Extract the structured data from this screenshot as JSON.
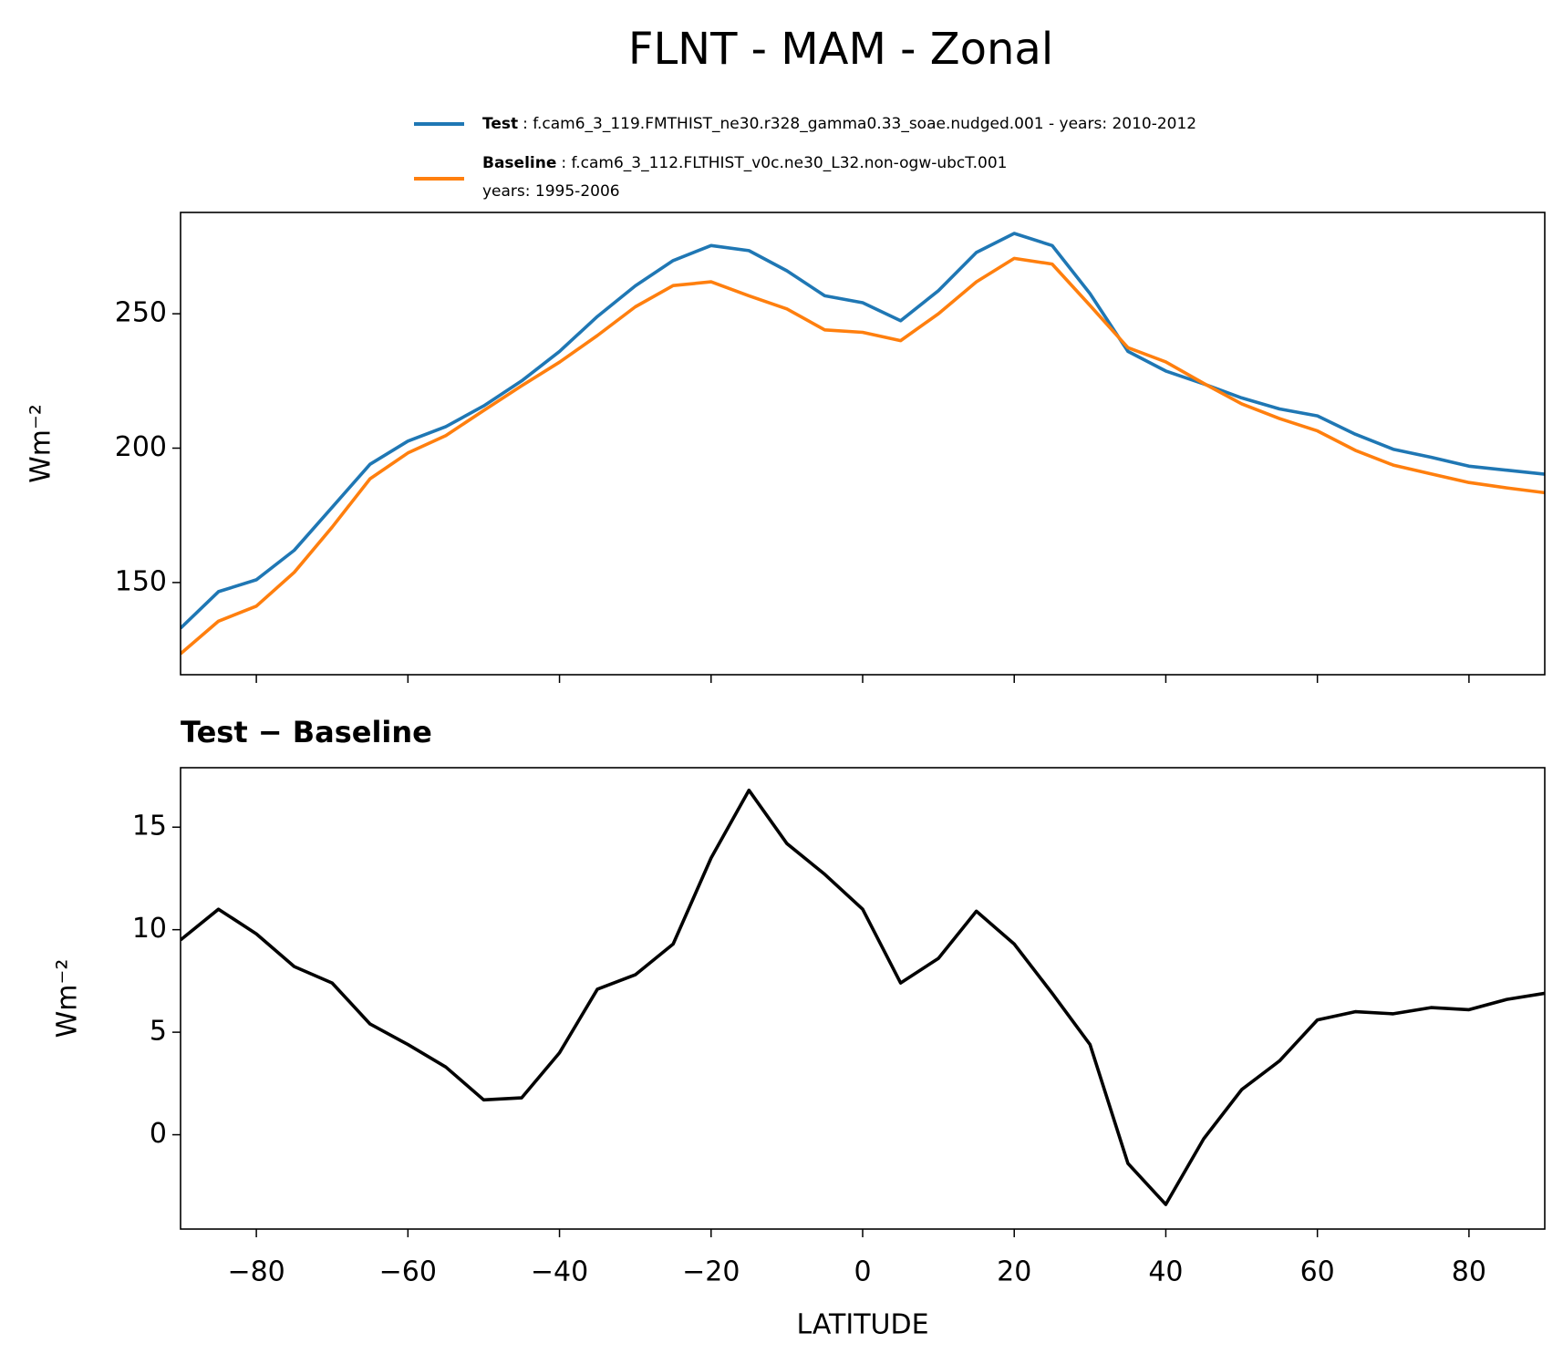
{
  "chart_data": [
    {
      "type": "line",
      "title": "FLNT - MAM - Zonal",
      "ylabel": "Wm⁻²",
      "x": [
        -90,
        -85,
        -80,
        -75,
        -70,
        -65,
        -60,
        -55,
        -50,
        -45,
        -40,
        -35,
        -30,
        -25,
        -20,
        -15,
        -10,
        -5,
        0,
        5,
        10,
        15,
        20,
        25,
        30,
        35,
        40,
        45,
        50,
        55,
        60,
        65,
        70,
        75,
        80,
        85,
        90
      ],
      "series": [
        {
          "name": "Test",
          "description": [
            ": f.cam6_3_119.FMTHIST_ne30.r328_gamma0.33_soae.nudged.001 - years: 2010-2012"
          ],
          "color": "#1f77b4",
          "values": [
            133,
            146.6,
            151,
            162,
            178,
            194,
            202.6,
            208,
            215.7,
            225,
            236,
            249,
            260.4,
            269.8,
            275.4,
            273.5,
            266,
            256.7,
            254.1,
            247.4,
            258.6,
            272.8,
            279.9,
            275.4,
            257.5,
            236,
            228.7,
            223.9,
            218.7,
            214.6,
            212,
            205.2,
            199.6,
            196.6,
            193.3,
            191.8,
            190.3
          ]
        },
        {
          "name": "Baseline",
          "description": [
            ": f.cam6_3_112.FLTHIST_v0c.ne30_L32.non-ogw-ubcT.001",
            "years: 1995-2006"
          ],
          "color": "#ff7f0e",
          "values": [
            123.5,
            135.6,
            141.2,
            153.8,
            170.6,
            188.6,
            198.2,
            204.7,
            214,
            223.2,
            232,
            241.9,
            252.6,
            260.5,
            261.9,
            256.7,
            251.8,
            244,
            243.1,
            240,
            250,
            261.9,
            270.6,
            268.5,
            253.1,
            237.4,
            232.1,
            224.1,
            216.5,
            211,
            206.4,
            199.2,
            193.7,
            190.4,
            187.2,
            185.2,
            183.4
          ]
        }
      ],
      "xlim": [
        -90,
        90
      ],
      "xticks": [
        -80,
        -60,
        -40,
        -20,
        0,
        20,
        40,
        60,
        80
      ],
      "ylim": [
        115.7,
        287.7
      ],
      "yticks": [
        150,
        200,
        250
      ]
    },
    {
      "type": "line",
      "title": "Test − Baseline",
      "ylabel": "Wm⁻²",
      "xlabel": "LATITUDE",
      "x": [
        -90,
        -85,
        -80,
        -75,
        -70,
        -65,
        -60,
        -55,
        -50,
        -45,
        -40,
        -35,
        -30,
        -25,
        -20,
        -15,
        -10,
        -5,
        0,
        5,
        10,
        15,
        20,
        25,
        30,
        35,
        40,
        45,
        50,
        55,
        60,
        65,
        70,
        75,
        80,
        85,
        90
      ],
      "series": [
        {
          "color": "#000000",
          "values": [
            9.5,
            11.0,
            9.8,
            8.2,
            7.4,
            5.4,
            4.4,
            3.3,
            1.7,
            1.8,
            4.0,
            7.1,
            7.8,
            9.3,
            13.5,
            16.8,
            14.2,
            12.7,
            11.0,
            7.4,
            8.6,
            10.9,
            9.3,
            6.9,
            4.4,
            -1.4,
            -3.4,
            -0.2,
            2.2,
            3.6,
            5.6,
            6.0,
            5.9,
            6.2,
            6.1,
            6.6,
            6.9
          ]
        }
      ],
      "xlim": [
        -90,
        90
      ],
      "xticks": [
        {
          "value": -80,
          "label": "−80"
        },
        {
          "value": -60,
          "label": "−60"
        },
        {
          "value": -40,
          "label": "−40"
        },
        {
          "value": -20,
          "label": "−20"
        },
        0,
        20,
        40,
        60,
        80
      ],
      "ylim": [
        -4.6,
        17.9
      ],
      "yticks": [
        0,
        5,
        10,
        15
      ]
    }
  ]
}
